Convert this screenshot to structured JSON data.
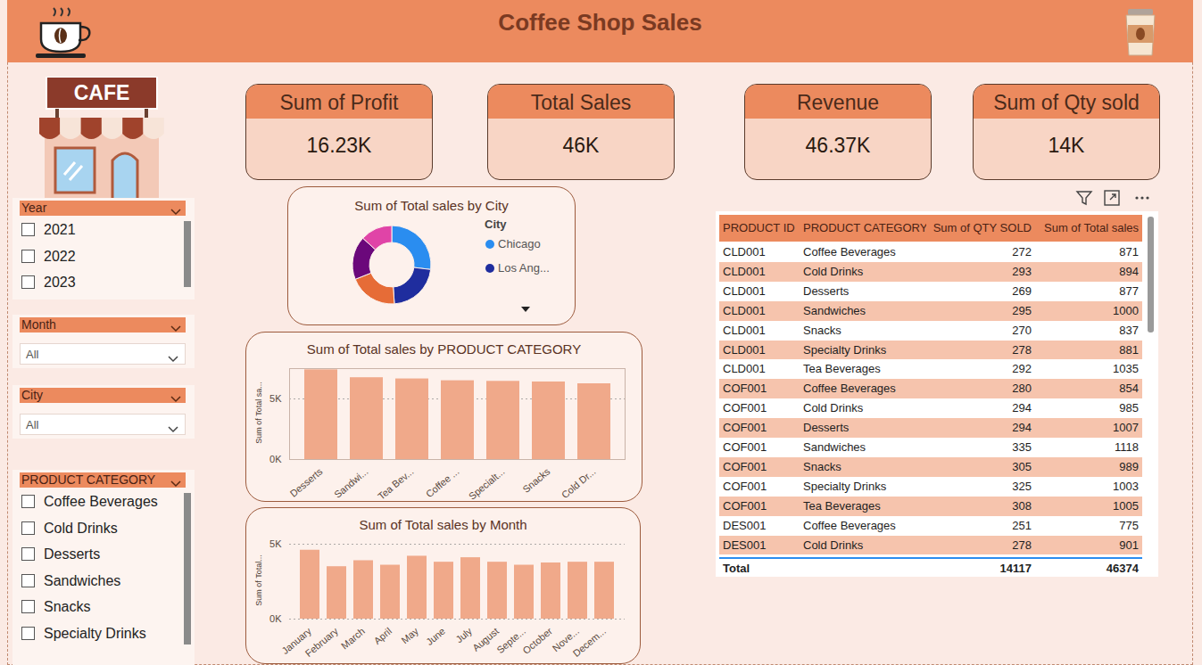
{
  "header": {
    "title": "Coffee Shop Sales"
  },
  "illustration": {
    "sign": "CAFE"
  },
  "kpis": [
    {
      "title": "Sum of Profit",
      "value": "16.23K"
    },
    {
      "title": "Total Sales",
      "value": "46K"
    },
    {
      "title": "Revenue",
      "value": "46.37K"
    },
    {
      "title": "Sum of Qty sold",
      "value": "14K"
    }
  ],
  "slicers": [
    {
      "title": "Year",
      "type": "list",
      "items": [
        "2021",
        "2022",
        "2023"
      ]
    },
    {
      "title": "Month",
      "type": "dropdown",
      "value": "All"
    },
    {
      "title": "City",
      "type": "dropdown",
      "value": "All"
    },
    {
      "title": "PRODUCT CATEGORY",
      "type": "list",
      "items": [
        "Coffee Beverages",
        "Cold Drinks",
        "Desserts",
        "Sandwiches",
        "Snacks",
        "Specialty Drinks"
      ]
    }
  ],
  "table": {
    "columns": [
      "PRODUCT ID",
      "PRODUCT CATEGORY",
      "Sum of QTY SOLD",
      "Sum of Total sales"
    ],
    "rows": [
      [
        "CLD001",
        "Coffee Beverages",
        272,
        871
      ],
      [
        "CLD001",
        "Cold Drinks",
        293,
        894
      ],
      [
        "CLD001",
        "Desserts",
        269,
        877
      ],
      [
        "CLD001",
        "Sandwiches",
        295,
        1000
      ],
      [
        "CLD001",
        "Snacks",
        270,
        837
      ],
      [
        "CLD001",
        "Specialty Drinks",
        278,
        881
      ],
      [
        "CLD001",
        "Tea Beverages",
        292,
        1035
      ],
      [
        "COF001",
        "Coffee Beverages",
        280,
        854
      ],
      [
        "COF001",
        "Cold Drinks",
        294,
        985
      ],
      [
        "COF001",
        "Desserts",
        294,
        1007
      ],
      [
        "COF001",
        "Sandwiches",
        335,
        1118
      ],
      [
        "COF001",
        "Snacks",
        305,
        989
      ],
      [
        "COF001",
        "Specialty Drinks",
        325,
        1003
      ],
      [
        "COF001",
        "Tea Beverages",
        308,
        1005
      ],
      [
        "DES001",
        "Coffee Beverages",
        251,
        775
      ],
      [
        "DES001",
        "Cold Drinks",
        278,
        901
      ]
    ],
    "total": {
      "label": "Total",
      "values": [
        14117,
        46374
      ]
    }
  },
  "chart_data": [
    {
      "type": "donut",
      "title": "Sum of Total sales by City",
      "legend_title": "City",
      "categories": [
        "Chicago",
        "Los Ang...",
        null,
        null,
        null
      ],
      "values": [
        12500,
        10200,
        9300,
        8300,
        6100
      ],
      "colors": [
        "#2a8df0",
        "#1f2d9e",
        "#e66c37",
        "#6b087b",
        "#e044a7"
      ],
      "legend": "right"
    },
    {
      "type": "bar",
      "title": "Sum of Total sales by PRODUCT CATEGORY",
      "ylabel": "Sum of Total sa...",
      "categories": [
        "Desserts",
        "Sandwi...",
        "Tea Bev...",
        "Coffee ...",
        "Specialt...",
        "Snacks",
        "Cold Dr..."
      ],
      "values": [
        7400,
        6750,
        6650,
        6500,
        6450,
        6400,
        6250
      ],
      "color": "#f0a98a",
      "ylim": [
        0,
        7500
      ],
      "yticks": [
        {
          "value": 0,
          "label": "0K"
        },
        {
          "value": 5000,
          "label": "5K"
        }
      ],
      "grid": true
    },
    {
      "type": "bar",
      "title": "Sum of Total sales by Month",
      "ylabel": "Sum of Total...",
      "categories": [
        "January",
        "February",
        "March",
        "April",
        "May",
        "June",
        "July",
        "August",
        "Septe...",
        "October",
        "Nove...",
        "Decem..."
      ],
      "values": [
        4600,
        3500,
        3900,
        3600,
        4200,
        3800,
        4100,
        3800,
        3600,
        3750,
        3800,
        3800
      ],
      "color": "#f0a98a",
      "ylim": [
        0,
        5000
      ],
      "yticks": [
        {
          "value": 0,
          "label": "0K"
        },
        {
          "value": 5000,
          "label": "5K"
        }
      ],
      "grid": true
    }
  ]
}
